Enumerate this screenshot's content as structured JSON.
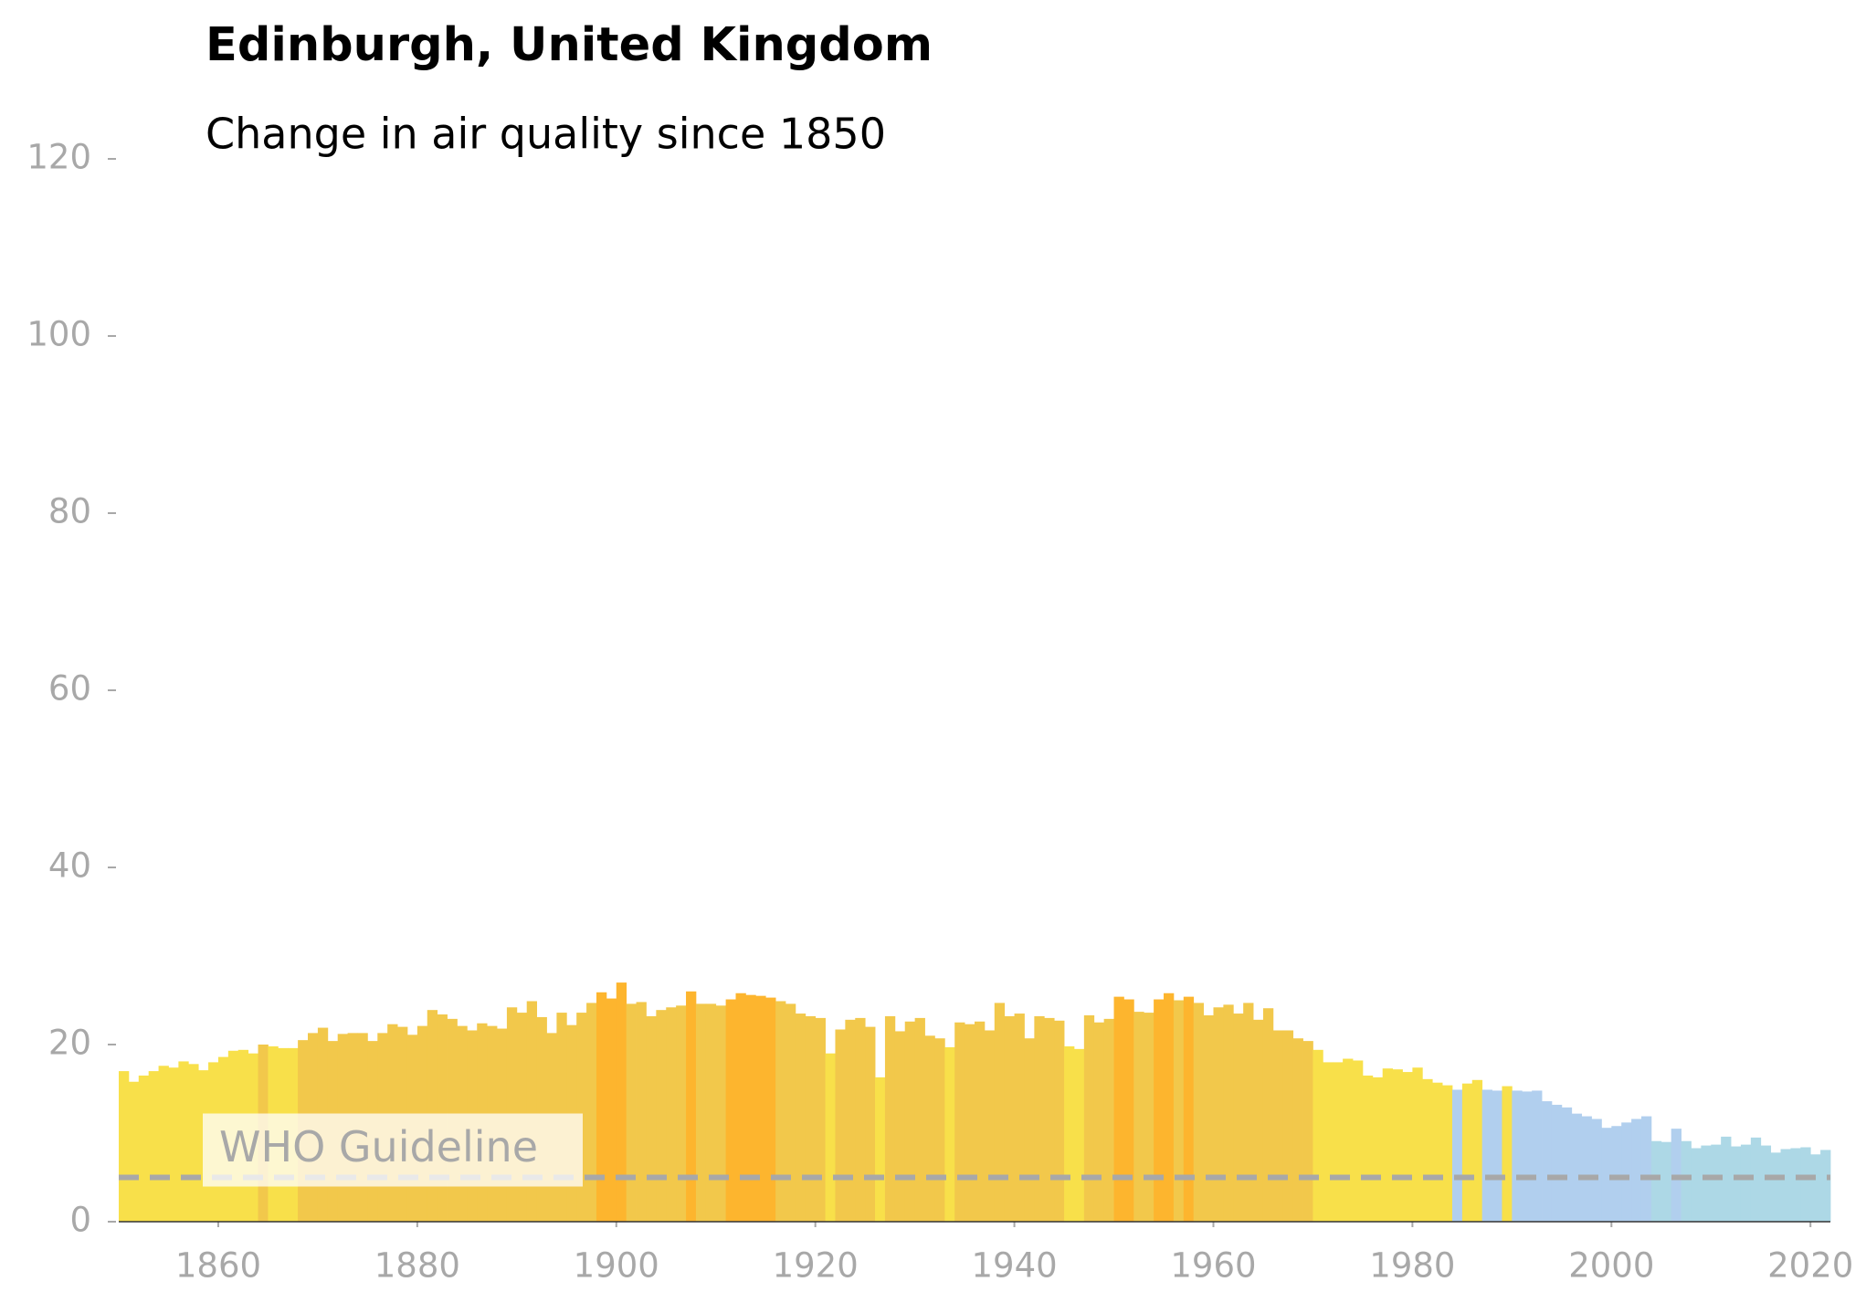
{
  "chart_data": {
    "type": "bar",
    "title": "Edinburgh, United Kingdom",
    "subtitle": "Change in air quality since 1850",
    "x": [
      1850,
      1851,
      1852,
      1853,
      1854,
      1855,
      1856,
      1857,
      1858,
      1859,
      1860,
      1861,
      1862,
      1863,
      1864,
      1865,
      1866,
      1867,
      1868,
      1869,
      1870,
      1871,
      1872,
      1873,
      1874,
      1875,
      1876,
      1877,
      1878,
      1879,
      1880,
      1881,
      1882,
      1883,
      1884,
      1885,
      1886,
      1887,
      1888,
      1889,
      1890,
      1891,
      1892,
      1893,
      1894,
      1895,
      1896,
      1897,
      1898,
      1899,
      1900,
      1901,
      1902,
      1903,
      1904,
      1905,
      1906,
      1907,
      1908,
      1909,
      1910,
      1911,
      1912,
      1913,
      1914,
      1915,
      1916,
      1917,
      1918,
      1919,
      1920,
      1921,
      1922,
      1923,
      1924,
      1925,
      1926,
      1927,
      1928,
      1929,
      1930,
      1931,
      1932,
      1933,
      1934,
      1935,
      1936,
      1937,
      1938,
      1939,
      1940,
      1941,
      1942,
      1943,
      1944,
      1945,
      1946,
      1947,
      1948,
      1949,
      1950,
      1951,
      1952,
      1953,
      1954,
      1955,
      1956,
      1957,
      1958,
      1959,
      1960,
      1961,
      1962,
      1963,
      1964,
      1965,
      1966,
      1967,
      1968,
      1969,
      1970,
      1971,
      1972,
      1973,
      1974,
      1975,
      1976,
      1977,
      1978,
      1979,
      1980,
      1981,
      1982,
      1983,
      1984,
      1985,
      1986,
      1987,
      1988,
      1989,
      1990,
      1991,
      1992,
      1993,
      1994,
      1995,
      1996,
      1997,
      1998,
      1999,
      2000,
      2001,
      2002,
      2003,
      2004,
      2005,
      2006,
      2007,
      2008,
      2009,
      2010,
      2011,
      2012,
      2013,
      2014,
      2015,
      2016,
      2017,
      2018,
      2019,
      2020,
      2021
    ],
    "values": [
      17.0,
      15.8,
      16.5,
      17.0,
      17.6,
      17.4,
      18.1,
      17.8,
      17.1,
      18.0,
      18.6,
      19.3,
      19.4,
      19.0,
      20.0,
      19.8,
      19.6,
      19.6,
      20.5,
      21.3,
      21.9,
      20.4,
      21.2,
      21.3,
      21.3,
      20.4,
      21.3,
      22.3,
      22.0,
      21.1,
      22.1,
      23.9,
      23.4,
      22.9,
      22.1,
      21.6,
      22.4,
      22.1,
      21.8,
      24.2,
      23.6,
      24.9,
      23.1,
      21.3,
      23.6,
      22.2,
      23.6,
      24.7,
      25.9,
      25.2,
      27.0,
      24.6,
      24.8,
      23.2,
      23.9,
      24.2,
      24.4,
      26.0,
      24.6,
      24.6,
      24.4,
      25.1,
      25.8,
      25.6,
      25.5,
      25.3,
      24.9,
      24.6,
      23.5,
      23.2,
      23.0,
      19.0,
      21.7,
      22.8,
      23.0,
      22.0,
      16.3,
      23.2,
      21.5,
      22.6,
      23.0,
      21.0,
      20.7,
      19.7,
      22.5,
      22.3,
      22.6,
      21.6,
      24.7,
      23.2,
      23.5,
      20.7,
      23.2,
      23.0,
      22.7,
      19.8,
      19.5,
      23.3,
      22.5,
      22.9,
      25.4,
      25.1,
      23.7,
      23.6,
      25.1,
      25.8,
      25.0,
      25.4,
      24.7,
      23.3,
      24.2,
      24.5,
      23.5,
      24.7,
      22.8,
      24.1,
      21.6,
      21.6,
      20.7,
      20.4,
      19.4,
      18.0,
      18.0,
      18.4,
      18.2,
      16.5,
      16.3,
      17.3,
      17.2,
      16.9,
      17.4,
      16.1,
      15.7,
      15.4,
      14.9,
      15.6,
      16.0,
      14.9,
      14.8,
      15.3,
      14.8,
      14.7,
      14.8,
      13.6,
      13.2,
      12.9,
      12.2,
      11.9,
      11.6,
      10.6,
      10.8,
      11.2,
      11.6,
      11.9,
      9.1,
      9.0,
      10.5,
      9.1,
      8.3,
      8.6,
      8.7,
      9.6,
      8.5,
      8.7,
      9.5,
      8.6,
      7.8,
      8.2,
      8.3,
      8.4,
      7.6,
      8.1
    ],
    "colors": [
      "#f8e04a",
      "#f8e04a",
      "#f8e04a",
      "#f8e04a",
      "#f8e04a",
      "#f8e04a",
      "#f8e04a",
      "#f8e04a",
      "#f8e04a",
      "#f8e04a",
      "#f8e04a",
      "#f8e04a",
      "#f8e04a",
      "#f8e04a",
      "#f2c84b",
      "#f8e04a",
      "#f8e04a",
      "#f8e04a",
      "#f2c84b",
      "#f2c84b",
      "#f2c84b",
      "#f2c84b",
      "#f2c84b",
      "#f2c84b",
      "#f2c84b",
      "#f2c84b",
      "#f2c84b",
      "#f2c84b",
      "#f2c84b",
      "#f2c84b",
      "#f2c84b",
      "#f2c84b",
      "#f2c84b",
      "#f2c84b",
      "#f2c84b",
      "#f2c84b",
      "#f2c84b",
      "#f2c84b",
      "#f2c84b",
      "#f2c84b",
      "#f2c84b",
      "#f2c84b",
      "#f2c84b",
      "#f2c84b",
      "#f2c84b",
      "#f2c84b",
      "#f2c84b",
      "#f2c84b",
      "#fdb52e",
      "#fdb52e",
      "#fdb52e",
      "#f2c84b",
      "#f2c84b",
      "#f2c84b",
      "#f2c84b",
      "#f2c84b",
      "#f2c84b",
      "#fdb52e",
      "#f2c84b",
      "#f2c84b",
      "#f2c84b",
      "#fdb52e",
      "#fdb52e",
      "#fdb52e",
      "#fdb52e",
      "#fdb52e",
      "#f2c84b",
      "#f2c84b",
      "#f2c84b",
      "#f2c84b",
      "#f2c84b",
      "#f8e04a",
      "#f2c84b",
      "#f2c84b",
      "#f2c84b",
      "#f2c84b",
      "#f8e04a",
      "#f2c84b",
      "#f2c84b",
      "#f2c84b",
      "#f2c84b",
      "#f2c84b",
      "#f2c84b",
      "#f8e04a",
      "#f2c84b",
      "#f2c84b",
      "#f2c84b",
      "#f2c84b",
      "#f2c84b",
      "#f2c84b",
      "#f2c84b",
      "#f2c84b",
      "#f2c84b",
      "#f2c84b",
      "#f2c84b",
      "#f8e04a",
      "#f8e04a",
      "#f2c84b",
      "#f2c84b",
      "#f2c84b",
      "#fdb52e",
      "#fdb52e",
      "#f2c84b",
      "#f2c84b",
      "#fdb52e",
      "#fdb52e",
      "#f2c84b",
      "#fdb52e",
      "#f2c84b",
      "#f2c84b",
      "#f2c84b",
      "#f2c84b",
      "#f2c84b",
      "#f2c84b",
      "#f2c84b",
      "#f2c84b",
      "#f2c84b",
      "#f2c84b",
      "#f2c84b",
      "#f2c84b",
      "#f8e04a",
      "#f8e04a",
      "#f8e04a",
      "#f8e04a",
      "#f8e04a",
      "#f8e04a",
      "#f8e04a",
      "#f8e04a",
      "#f8e04a",
      "#f8e04a",
      "#f8e04a",
      "#f8e04a",
      "#f8e04a",
      "#f8e04a",
      "#b1cfee",
      "#f8e04a",
      "#f8e04a",
      "#b1cfee",
      "#b1cfee",
      "#f8e04a",
      "#b1cfee",
      "#b1cfee",
      "#b1cfee",
      "#b1cfee",
      "#b1cfee",
      "#b1cfee",
      "#b1cfee",
      "#b1cfee",
      "#b1cfee",
      "#b1cfee",
      "#b1cfee",
      "#b1cfee",
      "#b1cfee",
      "#b1cfee",
      "#add8e6",
      "#add8e6",
      "#b1cfee",
      "#add8e6",
      "#add8e6",
      "#add8e6",
      "#add8e6",
      "#add8e6",
      "#add8e6",
      "#add8e6",
      "#add8e6",
      "#add8e6",
      "#add8e6",
      "#add8e6",
      "#add8e6",
      "#add8e6",
      "#add8e6",
      "#add8e6"
    ],
    "reference_line": {
      "value": 5,
      "label": "WHO Guideline"
    },
    "xlim": [
      1850,
      2022
    ],
    "xticks": [
      1860,
      1880,
      1900,
      1920,
      1940,
      1960,
      1980,
      2000,
      2020
    ],
    "ylim": [
      0,
      120
    ],
    "yticks": [
      0,
      20,
      40,
      60,
      80,
      100,
      120
    ]
  }
}
